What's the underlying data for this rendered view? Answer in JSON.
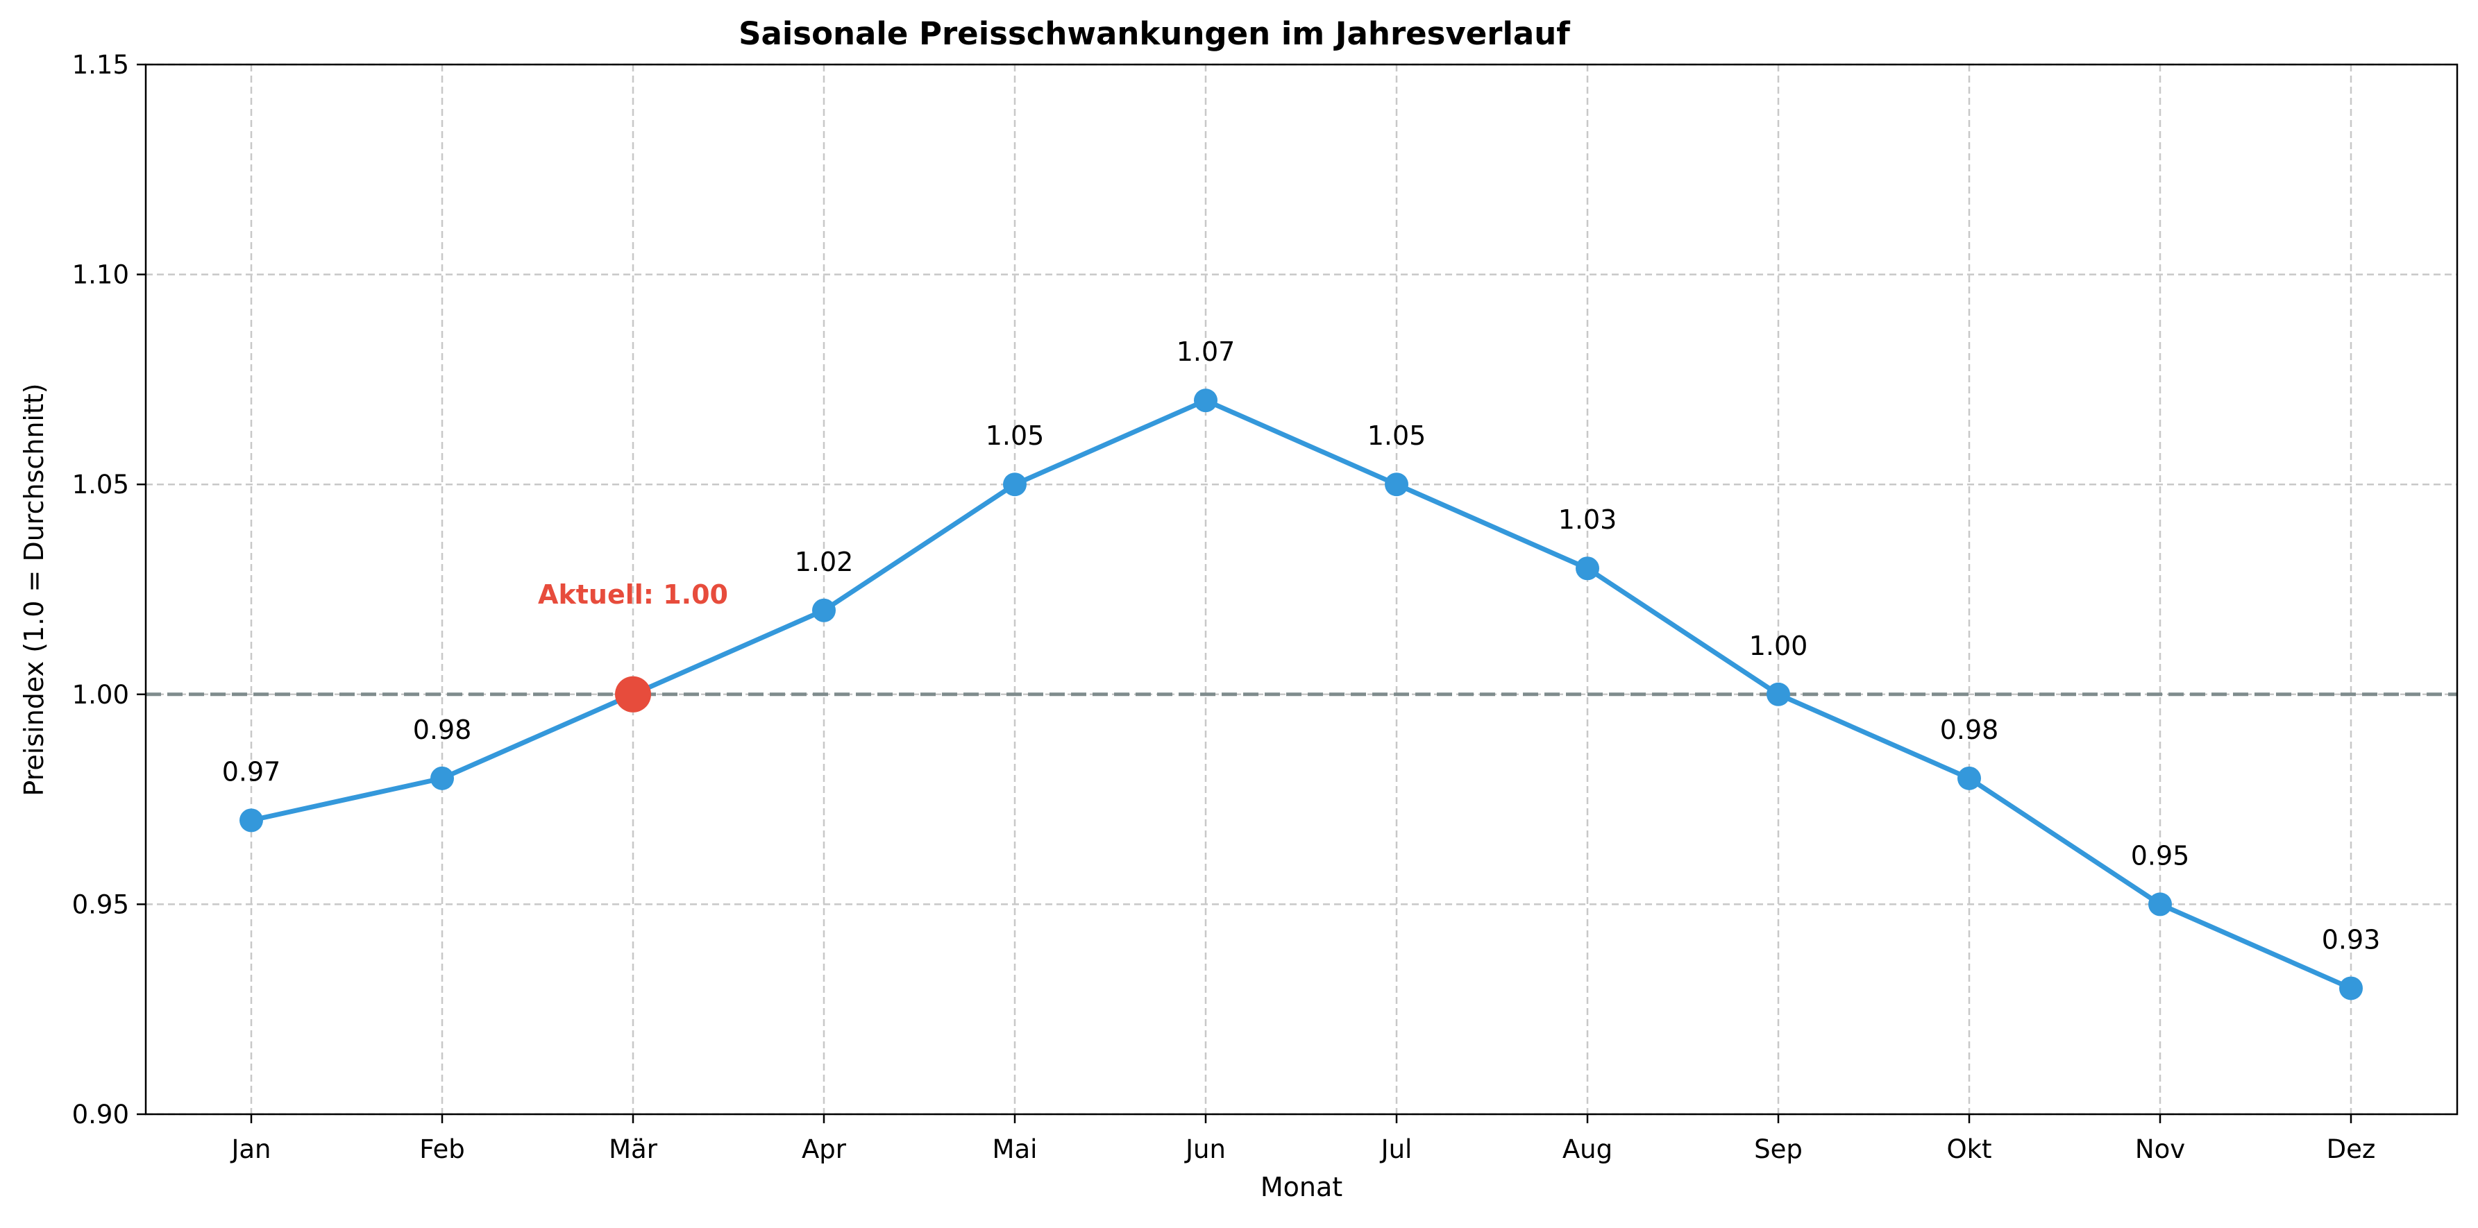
{
  "chart_data": {
    "type": "line",
    "title": "Saisonale Preisschwankungen im Jahresverlauf",
    "xlabel": "Monat",
    "ylabel": "Preisindex (1.0 = Durchschnitt)",
    "categories": [
      "Jan",
      "Feb",
      "Mär",
      "Apr",
      "Mai",
      "Jun",
      "Jul",
      "Aug",
      "Sep",
      "Okt",
      "Nov",
      "Dez"
    ],
    "series": [
      {
        "values": [
          0.97,
          0.98,
          1.0,
          1.02,
          1.05,
          1.07,
          1.05,
          1.03,
          1.0,
          0.98,
          0.95,
          0.93
        ],
        "color": "#3498db",
        "data_labels": [
          "0.97",
          "0.98",
          "",
          "1.02",
          "1.05",
          "1.07",
          "1.05",
          "1.03",
          "1.00",
          "0.98",
          "0.95",
          "0.93"
        ]
      }
    ],
    "highlight": {
      "category": "Mär",
      "value": 1.0,
      "label": "Aktuell: 1.00",
      "color": "#e74c3c"
    },
    "reference_line": {
      "value": 1.0,
      "color": "#7f8c8d",
      "style": "dashed"
    },
    "ylim": [
      0.9,
      1.15
    ],
    "yticks": [
      "0.90",
      "0.95",
      "1.00",
      "1.05",
      "1.10",
      "1.15"
    ],
    "grid": true
  }
}
